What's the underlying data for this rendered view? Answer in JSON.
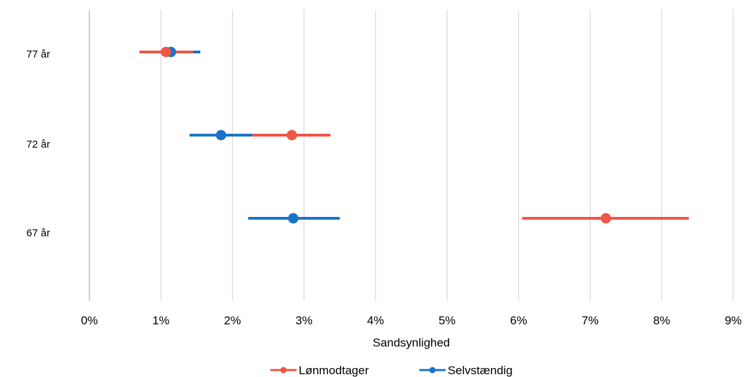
{
  "chart_data": {
    "type": "scatter",
    "title": "",
    "xlabel": "Sandsynlighed",
    "ylabel": "",
    "xlim": [
      0,
      9
    ],
    "x_ticks": [
      "0%",
      "1%",
      "2%",
      "3%",
      "4%",
      "5%",
      "6%",
      "7%",
      "8%",
      "9%"
    ],
    "categories": [
      "77 år",
      "72 år",
      "67 år"
    ],
    "grid": "vertical",
    "legend_position": "bottom",
    "series": [
      {
        "name": "Lønmodtager",
        "color": "#f05545",
        "points": [
          {
            "category": "77 år",
            "value": 1.07,
            "low": 0.7,
            "high": 1.45
          },
          {
            "category": "72 år",
            "value": 2.83,
            "low": 2.28,
            "high": 3.37
          },
          {
            "category": "67 år",
            "value": 7.22,
            "low": 6.05,
            "high": 8.38
          }
        ]
      },
      {
        "name": "Selvstændig",
        "color": "#1874c8",
        "points": [
          {
            "category": "77 år",
            "value": 1.14,
            "low": 0.93,
            "high": 1.55
          },
          {
            "category": "72 år",
            "value": 1.84,
            "low": 1.4,
            "high": 2.28
          },
          {
            "category": "67 år",
            "value": 2.85,
            "low": 2.22,
            "high": 3.5
          }
        ]
      }
    ]
  }
}
